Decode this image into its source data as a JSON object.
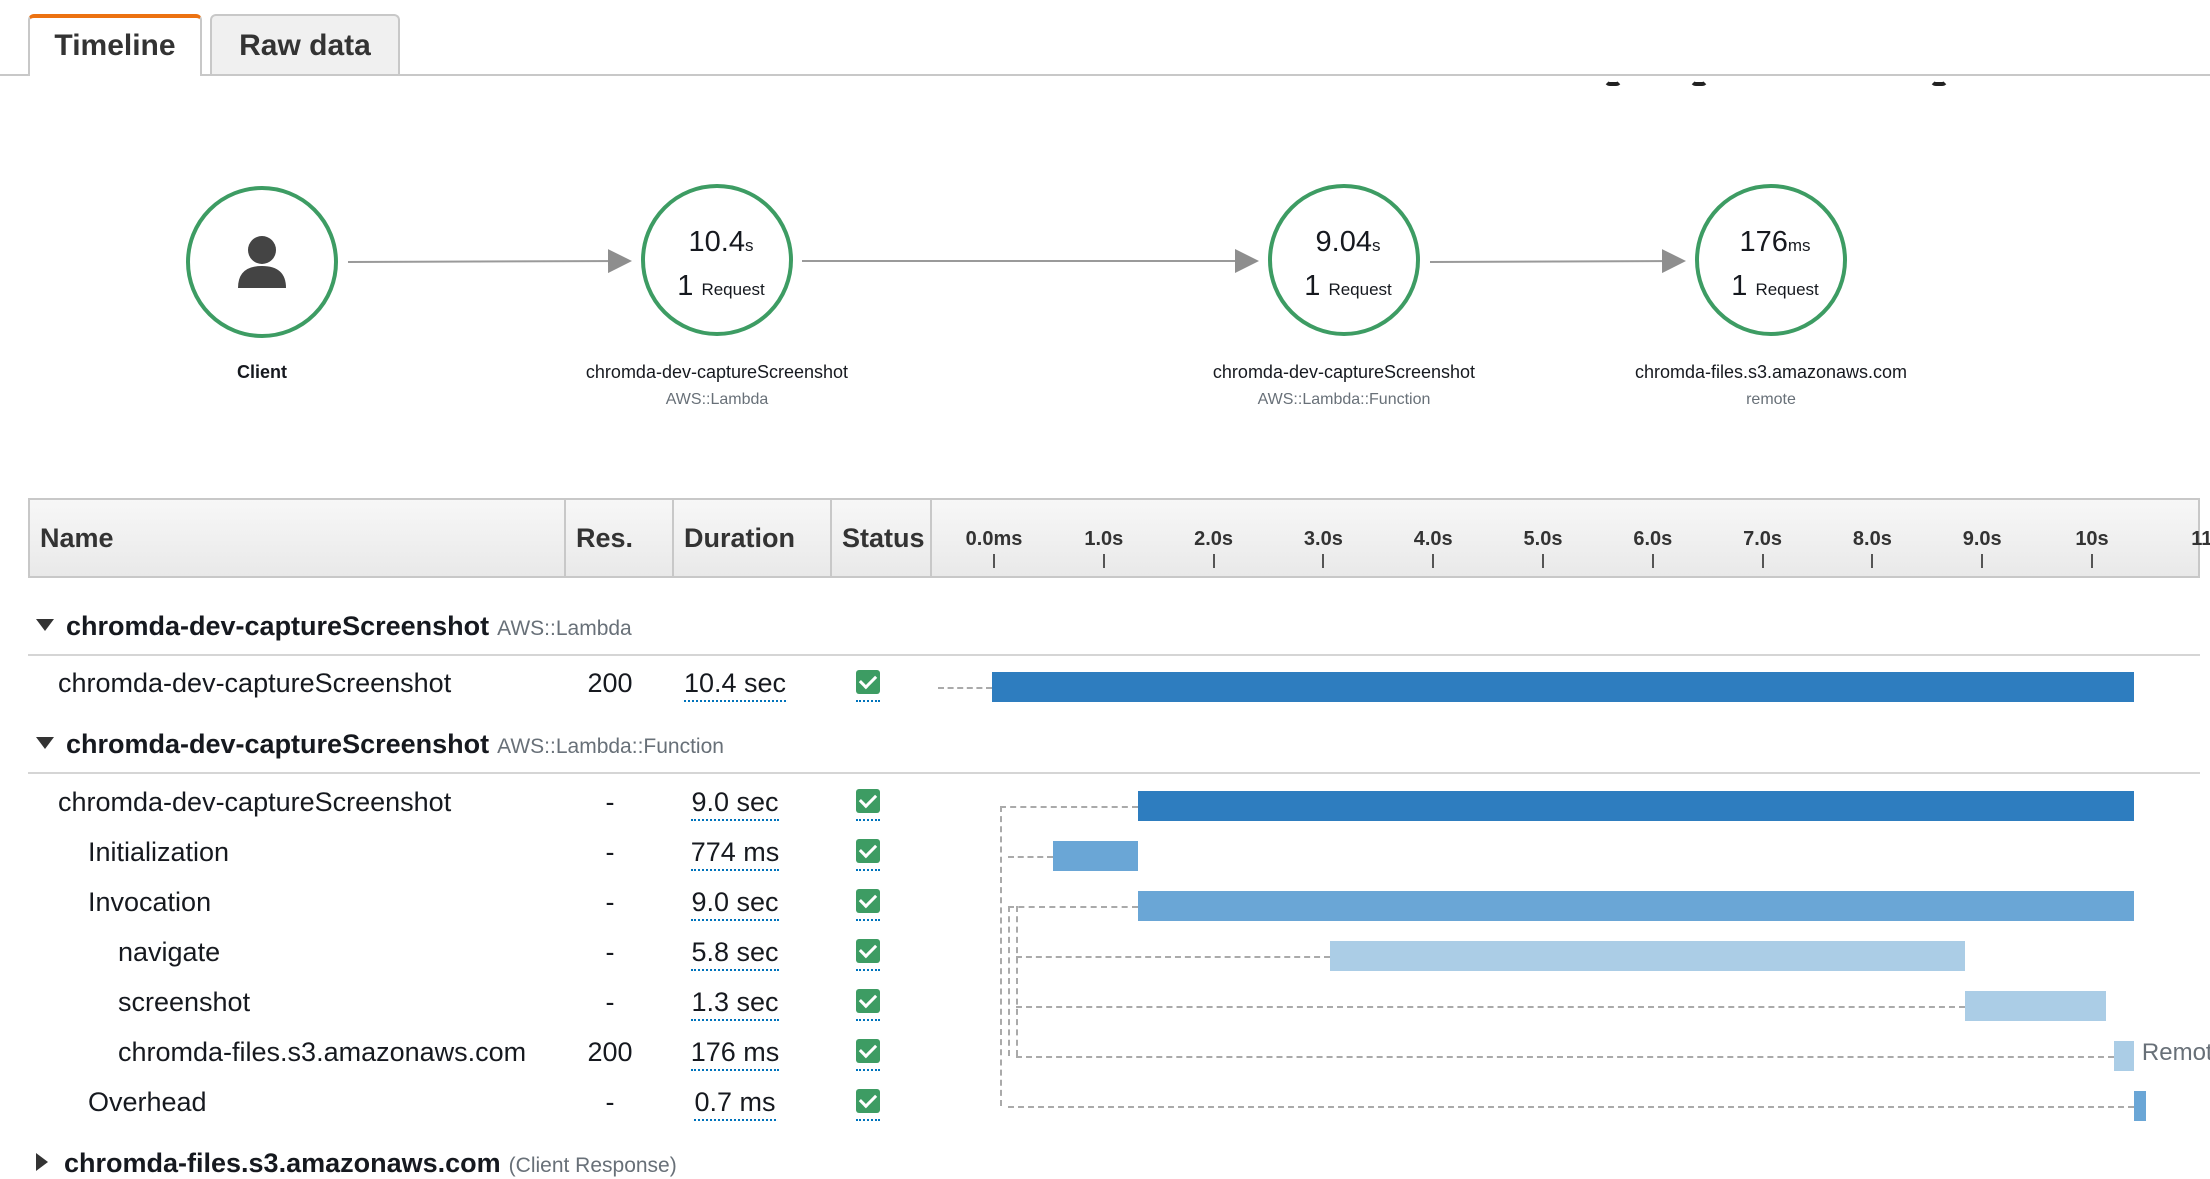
{
  "tabs": [
    {
      "label": "Timeline",
      "active": true
    },
    {
      "label": "Raw data",
      "active": false
    }
  ],
  "service_map": {
    "client": {
      "name": "Client",
      "icon": "user-icon"
    },
    "nodes": [
      {
        "duration": "10.4",
        "unit": "s",
        "requests": "1",
        "requests_label": "Request",
        "name": "chromda-dev-captureScreenshot",
        "type": "AWS::Lambda"
      },
      {
        "duration": "9.04",
        "unit": "s",
        "requests": "1",
        "requests_label": "Request",
        "name": "chromda-dev-captureScreenshot",
        "type": "AWS::Lambda::Function"
      },
      {
        "duration": "176",
        "unit": "ms",
        "requests": "1",
        "requests_label": "Request",
        "name": "chromda-files.s3.amazonaws.com",
        "type": "remote"
      }
    ]
  },
  "table": {
    "columns": {
      "name": "Name",
      "res": "Res.",
      "duration": "Duration",
      "status": "Status"
    },
    "ticks": [
      {
        "label": "0.0ms",
        "value": 0
      },
      {
        "label": "1.0s",
        "value": 1
      },
      {
        "label": "2.0s",
        "value": 2
      },
      {
        "label": "3.0s",
        "value": 3
      },
      {
        "label": "4.0s",
        "value": 4
      },
      {
        "label": "5.0s",
        "value": 5
      },
      {
        "label": "6.0s",
        "value": 6
      },
      {
        "label": "7.0s",
        "value": 7
      },
      {
        "label": "8.0s",
        "value": 8
      },
      {
        "label": "9.0s",
        "value": 9
      },
      {
        "label": "10s",
        "value": 10
      },
      {
        "label": "11",
        "value": 11
      }
    ],
    "groups": [
      {
        "name": "chromda-dev-captureScreenshot",
        "type": "AWS::Lambda",
        "expanded": true,
        "rows": [
          {
            "name": "chromda-dev-captureScreenshot",
            "res": "200",
            "duration": "10.4 sec",
            "status": "ok",
            "start": 0.0,
            "end": 10.4,
            "color": "#2e7dbf"
          }
        ]
      },
      {
        "name": "chromda-dev-captureScreenshot",
        "type": "AWS::Lambda::Function",
        "expanded": true,
        "rows": [
          {
            "name": "chromda-dev-captureScreenshot",
            "res": "-",
            "duration": "9.0 sec",
            "status": "ok",
            "start": 1.33,
            "end": 10.4,
            "color": "#2e7dbf"
          },
          {
            "name": "Initialization",
            "res": "-",
            "duration": "774 ms",
            "status": "ok",
            "start": 0.56,
            "end": 1.33,
            "color": "#6aa6d6"
          },
          {
            "name": "Invocation",
            "res": "-",
            "duration": "9.0 sec",
            "status": "ok",
            "start": 1.33,
            "end": 10.4,
            "color": "#6aa6d6"
          },
          {
            "name": "navigate",
            "res": "-",
            "duration": "5.8 sec",
            "status": "ok",
            "start": 3.08,
            "end": 8.86,
            "color": "#abcde6"
          },
          {
            "name": "screenshot",
            "res": "-",
            "duration": "1.3 sec",
            "status": "ok",
            "start": 8.86,
            "end": 10.15,
            "color": "#abcde6"
          },
          {
            "name": "chromda-files.s3.amazonaws.com",
            "res": "200",
            "duration": "176 ms",
            "status": "ok",
            "start": 10.22,
            "end": 10.4,
            "color": "#abcde6",
            "tag": "Remot"
          },
          {
            "name": "Overhead",
            "res": "-",
            "duration": "0.7 ms",
            "status": "ok",
            "start": 10.4,
            "end": 10.5,
            "color": "#6aa6d6"
          }
        ]
      },
      {
        "name": "chromda-files.s3.amazonaws.com",
        "type": "(Client Response)",
        "expanded": false,
        "rows": []
      }
    ]
  }
}
